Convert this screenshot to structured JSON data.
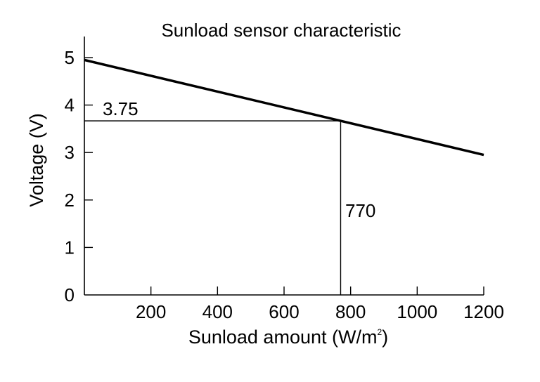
{
  "chart_data": {
    "type": "line",
    "title": "Sunload sensor characteristic",
    "xlabel": "Sunload amount (W/m",
    "xlabel_superscript": "2",
    "xlabel_close": ")",
    "ylabel": "Voltage (V)",
    "xlim": [
      0,
      1200
    ],
    "ylim": [
      0,
      5
    ],
    "xticks": [
      200,
      400,
      600,
      800,
      1000,
      1200
    ],
    "yticks": [
      0,
      1,
      2,
      3,
      4,
      5
    ],
    "grid": false,
    "series": [
      {
        "points": [
          [
            0,
            4.95
          ],
          [
            1200,
            2.95
          ]
        ]
      }
    ],
    "reference_point": {
      "x": 770,
      "y": 3.75
    },
    "annotations": {
      "y_value_label": "3.75",
      "x_value_label": "770"
    }
  }
}
